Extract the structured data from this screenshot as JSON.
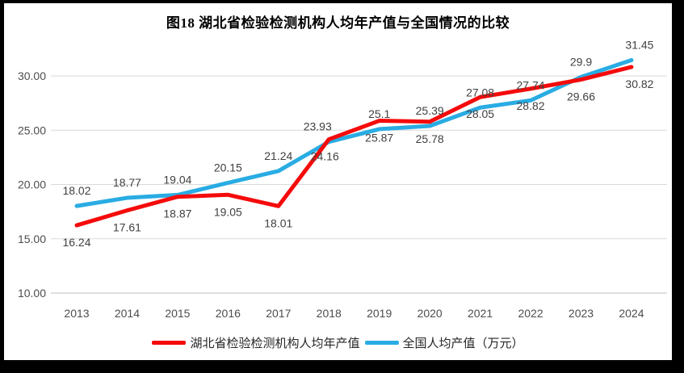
{
  "window": {
    "frame_color": "#000000",
    "canvas_color": "#FFFFFF"
  },
  "chart_data": {
    "type": "line",
    "title": "图18 湖北省检验检测机构人均年产值与全国情况的比较",
    "categories": [
      "2013",
      "2014",
      "2015",
      "2016",
      "2017",
      "2018",
      "2019",
      "2020",
      "2021",
      "2022",
      "2023",
      "2024"
    ],
    "series": [
      {
        "name": "湖北省检验检测机构人均年产值",
        "color": "#F40B0B",
        "values": [
          16.24,
          17.61,
          18.87,
          19.05,
          18.01,
          24.16,
          25.87,
          25.78,
          28.05,
          28.82,
          29.66,
          30.82
        ],
        "label_position": "below",
        "label_dx": [
          0,
          0,
          0,
          0,
          0,
          -5,
          0,
          0,
          0,
          0,
          0,
          10
        ]
      },
      {
        "name": "全国人均产值（万元）",
        "color": "#29ACE3",
        "values": [
          18.02,
          18.77,
          19.04,
          20.15,
          21.24,
          23.93,
          25.1,
          25.39,
          27.08,
          27.74,
          29.9,
          31.45
        ],
        "label_position": "above",
        "label_dx": [
          0,
          0,
          0,
          0,
          0,
          -14,
          0,
          0,
          0,
          0,
          0,
          10
        ]
      }
    ],
    "xlabel": "",
    "ylabel": "",
    "y_ticks": [
      "10.00",
      "15.00",
      "20.00",
      "25.00",
      "30.00"
    ],
    "ylim": [
      10,
      32.3
    ],
    "grid": true,
    "legend_position": "bottom",
    "colors": {
      "gridline": "#D9D9D9",
      "axis_line": "#BDBDBD",
      "data_label": "#404040",
      "tick_label": "#4D4D4D"
    }
  }
}
